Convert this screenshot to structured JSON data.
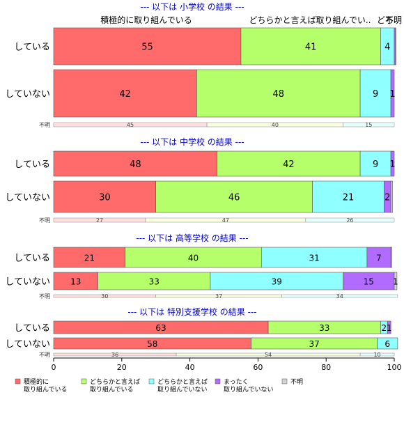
{
  "chart_data": {
    "type": "bar",
    "orientation": "horizontal",
    "stacked": true,
    "xlim": [
      0,
      100
    ],
    "x_ticks": [
      0,
      20,
      40,
      60,
      80,
      100
    ],
    "grid": false,
    "legend_position": "bottom",
    "category_header_labels": [
      "積極的に取り組んでいる",
      "どちらかと言えば取り組んでい..",
      "どち..",
      "不明"
    ],
    "series": [
      {
        "key": "s1",
        "legend": "積極的に\n取り組んでいる",
        "color": "#FF6B6B"
      },
      {
        "key": "s2",
        "legend": "どちらかと言えば\n取り組んでいる",
        "color": "#B5FF6B"
      },
      {
        "key": "s3",
        "legend": "どちらかと言えば\n取り組んでいない",
        "color": "#8FFFFF"
      },
      {
        "key": "s4",
        "legend": "まったく\n取り組んでいない",
        "color": "#B16BFF"
      },
      {
        "key": "s5",
        "legend": "不明",
        "color": "#D3D3D3"
      }
    ],
    "panels": [
      {
        "title": "--- 以下は 小学校 の結果 ---",
        "rows": [
          {
            "label": "している",
            "values": [
              55,
              41,
              4,
              0.3,
              0.2
            ],
            "value_labels": [
              "55",
              "41",
              "4",
              "",
              ""
            ]
          },
          {
            "label": "していない",
            "values": [
              42,
              48,
              9,
              1,
              0
            ],
            "value_labels": [
              "42",
              "48",
              "9",
              "1",
              ""
            ]
          }
        ],
        "unknown": {
          "label": "不明",
          "values": [
            45,
            40,
            15
          ],
          "value_labels": [
            "45",
            "40",
            "15"
          ]
        }
      },
      {
        "title": "--- 以下は 中学校 の結果 ---",
        "rows": [
          {
            "label": "している",
            "values": [
              48,
              42,
              9,
              1,
              0
            ],
            "value_labels": [
              "48",
              "42",
              "9",
              "1",
              ""
            ]
          },
          {
            "label": "していない",
            "values": [
              30,
              46,
              21,
              2,
              0.5
            ],
            "value_labels": [
              "30",
              "46",
              "21",
              "2",
              ""
            ]
          }
        ],
        "unknown": {
          "label": "不明",
          "values": [
            27,
            47,
            26
          ],
          "value_labels": [
            "27",
            "47",
            "26"
          ]
        }
      },
      {
        "title": "--- 以下は 高等学校 の結果 ---",
        "rows": [
          {
            "label": "している",
            "values": [
              21,
              40,
              31,
              7,
              0.3
            ],
            "value_labels": [
              "21",
              "40",
              "31",
              "7",
              ""
            ]
          },
          {
            "label": "していない",
            "values": [
              13,
              33,
              39,
              15,
              0.8
            ],
            "value_labels": [
              "13",
              "33",
              "39",
              "15",
              "1"
            ]
          }
        ],
        "unknown": {
          "label": "不明",
          "values": [
            30,
            37,
            34
          ],
          "value_labels": [
            "30",
            "37",
            "34"
          ]
        }
      },
      {
        "title": "--- 以下は 特別支援学校 の結果 ---",
        "rows": [
          {
            "label": "している",
            "values": [
              63,
              33,
              2,
              1,
              0
            ],
            "value_labels": [
              "63",
              "33",
              "2",
              "1",
              ""
            ]
          },
          {
            "label": "していない",
            "values": [
              58,
              37,
              6,
              0,
              0
            ],
            "value_labels": [
              "58",
              "37",
              "6",
              "",
              ""
            ]
          }
        ],
        "unknown": {
          "label": "不明",
          "values": [
            36,
            54,
            10
          ],
          "value_labels": [
            "36",
            "54",
            "10"
          ]
        }
      }
    ]
  }
}
